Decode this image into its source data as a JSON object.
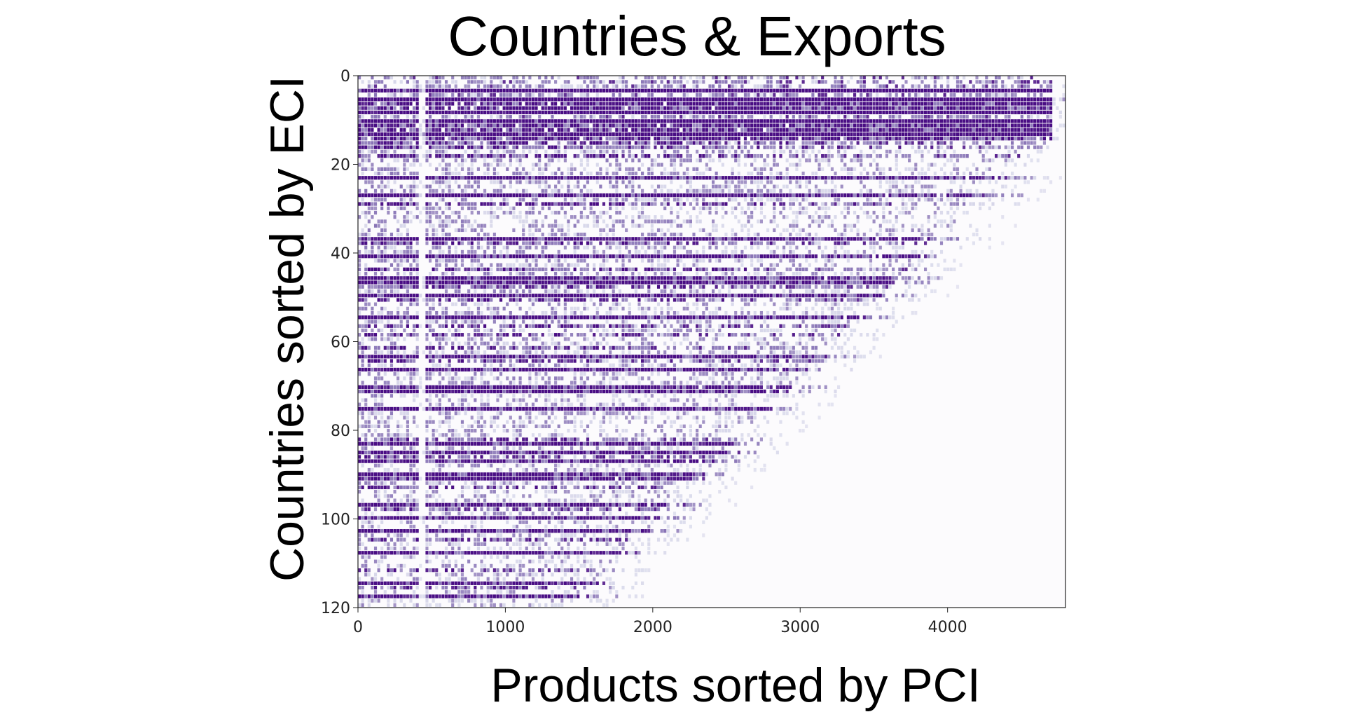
{
  "chart_data": {
    "type": "heatmap",
    "title": "Countries & Exports",
    "xlabel": "Products sorted by PCI",
    "ylabel": "Countries sorted by ECI",
    "xlim": [
      0,
      4800
    ],
    "ylim": [
      120,
      0
    ],
    "x_ticks": [
      0,
      1000,
      2000,
      3000,
      4000
    ],
    "y_ticks": [
      0,
      20,
      40,
      60,
      80,
      100,
      120
    ],
    "rows": 122,
    "cols": 4800,
    "colormap": "Purples",
    "grid": false,
    "legend": "none",
    "pattern": "upper-left triangular nested structure: high-ECI countries export across all products, low-ECI countries concentrate on low-PCI products",
    "dense_rows": [
      3,
      5,
      8,
      10,
      13,
      23,
      27,
      37,
      41,
      46,
      47,
      50,
      55,
      64,
      67,
      71,
      72,
      76,
      84,
      86,
      88,
      91,
      92,
      98,
      101,
      104,
      109,
      116,
      119
    ]
  },
  "colors": {
    "cell_dark": "#3f007d",
    "cell_mid": "#6a51a3",
    "cell_light": "#bcbddc",
    "background": "#fcfbfd",
    "frame": "#222222"
  }
}
